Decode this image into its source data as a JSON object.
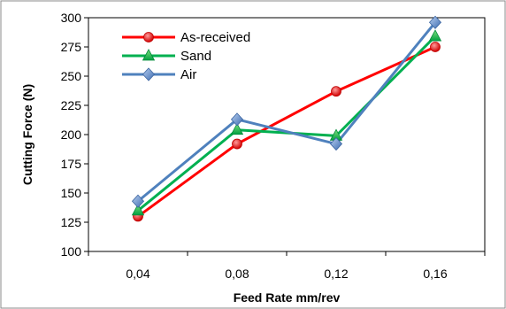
{
  "chart_data": {
    "type": "line",
    "xlabel": "Feed Rate mm/rev",
    "ylabel": "Cutting Force (N)",
    "categories": [
      "0,04",
      "0,08",
      "0,12",
      "0,16"
    ],
    "ylim": [
      100,
      300
    ],
    "yticks": [
      "100",
      "125",
      "150",
      "175",
      "200",
      "225",
      "250",
      "275",
      "300"
    ],
    "grid": false,
    "legend_position": "top-left",
    "series": [
      {
        "name": "As-received",
        "values": [
          130,
          192,
          237,
          275
        ],
        "color": "#ff0000",
        "marker": "circle"
      },
      {
        "name": "Sand",
        "values": [
          135,
          204,
          199,
          284
        ],
        "color": "#00b050",
        "marker": "triangle"
      },
      {
        "name": "Air",
        "values": [
          143,
          213,
          192,
          296
        ],
        "color": "#4f81bd",
        "marker": "diamond"
      }
    ]
  }
}
